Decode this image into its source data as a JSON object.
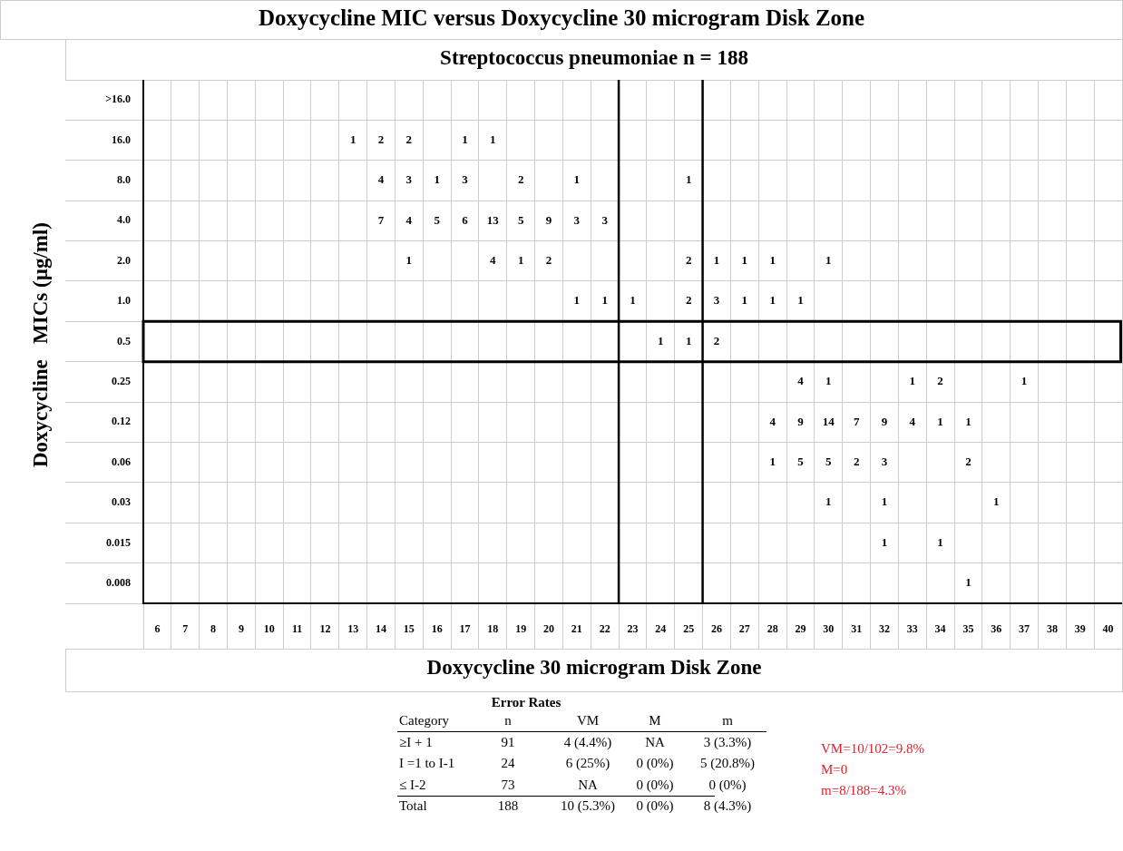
{
  "chart_data": {
    "type": "heatmap",
    "title": "Doxycycline MIC versus Doxycycline 30 microgram Disk Zone",
    "subtitle": "Streptococcus pneumoniae n = 188",
    "xlabel": "Doxycycline 30 microgram Disk Zone",
    "ylabel": "Doxycycline   MICs (µg/ml)",
    "categories": [
      "6",
      "7",
      "8",
      "9",
      "10",
      "11",
      "12",
      "13",
      "14",
      "15",
      "16",
      "17",
      "18",
      "19",
      "20",
      "21",
      "22",
      "23",
      "24",
      "25",
      "26",
      "27",
      "28",
      "29",
      "30",
      "31",
      "32",
      "33",
      "34",
      "35",
      "36",
      "37",
      "38",
      "39",
      "40"
    ],
    "y_categories": [
      ">16.0",
      "16.0",
      "8.0",
      "4.0",
      "2.0",
      "1.0",
      "0.5",
      "0.25",
      "0.12",
      "0.06",
      "0.03",
      "0.015",
      "0.008"
    ],
    "cells": [
      [
        null,
        null,
        null,
        null,
        null,
        null,
        null,
        null,
        null,
        null,
        null,
        null,
        null,
        null,
        null,
        null,
        null,
        null,
        null,
        null,
        null,
        null,
        null,
        null,
        null,
        null,
        null,
        null,
        null,
        null,
        null,
        null,
        null,
        null,
        null
      ],
      [
        null,
        null,
        null,
        null,
        null,
        null,
        null,
        1,
        2,
        2,
        null,
        1,
        1,
        null,
        null,
        null,
        null,
        null,
        null,
        null,
        null,
        null,
        null,
        null,
        null,
        null,
        null,
        null,
        null,
        null,
        null,
        null,
        null,
        null,
        null
      ],
      [
        null,
        null,
        null,
        null,
        null,
        null,
        null,
        null,
        4,
        3,
        1,
        3,
        null,
        2,
        null,
        1,
        null,
        null,
        null,
        1,
        null,
        null,
        null,
        null,
        null,
        null,
        null,
        null,
        null,
        null,
        null,
        null,
        null,
        null,
        null
      ],
      [
        null,
        null,
        null,
        null,
        null,
        null,
        null,
        null,
        7,
        4,
        5,
        6,
        13,
        5,
        9,
        3,
        3,
        null,
        null,
        null,
        null,
        null,
        null,
        null,
        null,
        null,
        null,
        null,
        null,
        null,
        null,
        null,
        null,
        null,
        null
      ],
      [
        null,
        null,
        null,
        null,
        null,
        null,
        null,
        null,
        null,
        1,
        null,
        null,
        4,
        1,
        2,
        null,
        null,
        null,
        null,
        2,
        1,
        1,
        1,
        null,
        1,
        null,
        null,
        null,
        null,
        null,
        null,
        null,
        null,
        null,
        null
      ],
      [
        null,
        null,
        null,
        null,
        null,
        null,
        null,
        null,
        null,
        null,
        null,
        null,
        null,
        null,
        null,
        1,
        1,
        1,
        null,
        2,
        3,
        1,
        1,
        1,
        null,
        null,
        null,
        null,
        null,
        null,
        null,
        null,
        null,
        null,
        null
      ],
      [
        null,
        null,
        null,
        null,
        null,
        null,
        null,
        null,
        null,
        null,
        null,
        null,
        null,
        null,
        null,
        null,
        null,
        null,
        1,
        1,
        2,
        null,
        null,
        null,
        null,
        null,
        null,
        null,
        null,
        null,
        null,
        null,
        null,
        null,
        null
      ],
      [
        null,
        null,
        null,
        null,
        null,
        null,
        null,
        null,
        null,
        null,
        null,
        null,
        null,
        null,
        null,
        null,
        null,
        null,
        null,
        null,
        null,
        null,
        null,
        4,
        1,
        null,
        null,
        1,
        2,
        null,
        null,
        1,
        null,
        null,
        null
      ],
      [
        null,
        null,
        null,
        null,
        null,
        null,
        null,
        null,
        null,
        null,
        null,
        null,
        null,
        null,
        null,
        null,
        null,
        null,
        null,
        null,
        null,
        null,
        4,
        9,
        14,
        7,
        9,
        4,
        1,
        1,
        null,
        null,
        null,
        null,
        null
      ],
      [
        null,
        null,
        null,
        null,
        null,
        null,
        null,
        null,
        null,
        null,
        null,
        null,
        null,
        null,
        null,
        null,
        null,
        null,
        null,
        null,
        null,
        null,
        1,
        5,
        5,
        2,
        3,
        null,
        null,
        2,
        null,
        null,
        null,
        null,
        null
      ],
      [
        null,
        null,
        null,
        null,
        null,
        null,
        null,
        null,
        null,
        null,
        null,
        null,
        null,
        null,
        null,
        null,
        null,
        null,
        null,
        null,
        null,
        null,
        null,
        null,
        1,
        null,
        1,
        null,
        null,
        null,
        1,
        null,
        null,
        null,
        null
      ],
      [
        null,
        null,
        null,
        null,
        null,
        null,
        null,
        null,
        null,
        null,
        null,
        null,
        null,
        null,
        null,
        null,
        null,
        null,
        null,
        null,
        null,
        null,
        null,
        null,
        null,
        null,
        1,
        null,
        1,
        null,
        null,
        null,
        null,
        null,
        null
      ],
      [
        null,
        null,
        null,
        null,
        null,
        null,
        null,
        null,
        null,
        null,
        null,
        null,
        null,
        null,
        null,
        null,
        null,
        null,
        null,
        null,
        null,
        null,
        null,
        null,
        null,
        null,
        null,
        null,
        null,
        1,
        null,
        null,
        null,
        null,
        null
      ]
    ],
    "data_labels": true,
    "grid": true,
    "annotations": [
      "Error Rates",
      "Category",
      "n",
      "VM",
      "M",
      "m",
      "≥I + 1",
      "91",
      "4 (4.4%)",
      "NA",
      "3 (3.3%)",
      "I =1 to I-1",
      "24",
      "6 (25%)",
      "0 (0%)",
      "5 (20.8%)",
      "≤ I-2",
      "73",
      "NA",
      "0 (0%)",
      "0 (0%)",
      "Total",
      "188",
      "10 (5.3%)",
      "0 (0%)",
      "8 (4.3%)",
      "VM=10/102=9.8%",
      "M=0",
      "m=8/188=4.3%"
    ]
  }
}
